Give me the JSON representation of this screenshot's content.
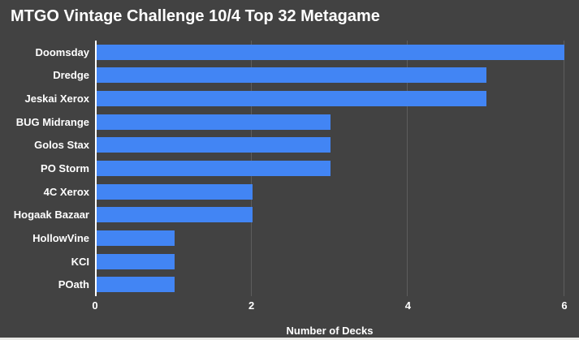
{
  "chart": {
    "title": "MTGO Vintage Challenge 10/4 Top 32 Metagame",
    "xlabel": "Number of Decks"
  },
  "chart_data": {
    "type": "bar",
    "orientation": "horizontal",
    "title": "MTGO Vintage Challenge 10/4 Top 32 Metagame",
    "xlabel": "Number of Decks",
    "ylabel": "",
    "categories": [
      "Doomsday",
      "Dredge",
      "Jeskai Xerox",
      "BUG Midrange",
      "Golos Stax",
      "PO Storm",
      "4C Xerox",
      "Hogaak Bazaar",
      "HollowVine",
      "KCI",
      "POath"
    ],
    "values": [
      6,
      5,
      5,
      3,
      3,
      3,
      2,
      2,
      1,
      1,
      1
    ],
    "xlim": [
      0,
      6
    ],
    "xticks": [
      0,
      2,
      4,
      6
    ],
    "grid": true,
    "legend": "none",
    "colors": {
      "background": "#424242",
      "bar": "#4285f4",
      "gridline": "#5d5d5d",
      "axis_line": "#ffffff",
      "text": "#ffffff"
    }
  }
}
